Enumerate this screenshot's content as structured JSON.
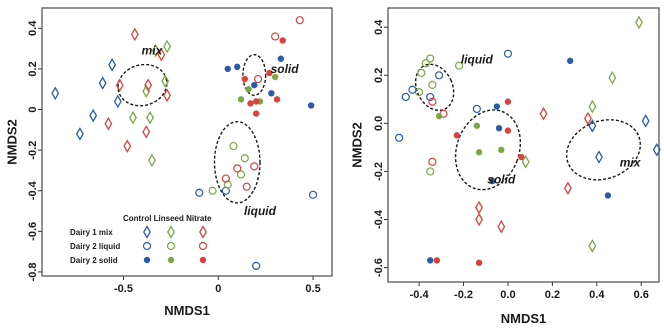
{
  "chart_data": [
    {
      "type": "scatter",
      "xlabel": "NMDS1",
      "ylabel": "NMDS2",
      "xlim": [
        -0.93,
        0.6
      ],
      "ylim": [
        -0.82,
        0.5
      ],
      "xticks": [
        -0.5,
        0.0,
        0.5
      ],
      "xtick_labels": [
        "-0.5",
        "0",
        "0.5"
      ],
      "yticks": [
        0.4,
        0.2,
        0.0,
        -0.2,
        -0.4,
        -0.6,
        -0.8
      ],
      "ytick_labels": [
        "0.4",
        "0.2",
        "0",
        "-0.2",
        "-0.4",
        "-0.6",
        "-0.8"
      ],
      "grid": false,
      "legend": {
        "placement": "bottom-left",
        "column_headers": [
          "Control",
          "Linseed",
          "Nitrate"
        ],
        "rows": [
          "Dairy 1 mix",
          "Dairy 2 liquid",
          "Dairy 2 solid"
        ],
        "marker_shapes": [
          "diamond",
          "circle-open",
          "circle-filled"
        ],
        "colors": [
          "#2b5ba8",
          "#7ba843",
          "#d9423f"
        ]
      },
      "ellipses": [
        {
          "label": "mix",
          "center": [
            -0.4,
            0.12
          ],
          "radii": [
            0.13,
            0.1
          ],
          "angle": -15
        },
        {
          "label": "solid",
          "center": [
            0.19,
            0.17
          ],
          "radii": [
            0.06,
            0.1
          ],
          "angle": 0
        },
        {
          "label": "liquid",
          "center": [
            0.1,
            -0.26
          ],
          "radii": [
            0.12,
            0.2
          ],
          "angle": 0
        }
      ],
      "annotations": [
        {
          "text": "mix",
          "x": -0.35,
          "y": 0.27
        },
        {
          "text": "solid",
          "x": 0.35,
          "y": 0.18
        },
        {
          "text": "liquid",
          "x": 0.22,
          "y": -0.52
        }
      ],
      "points": [
        {
          "x": -0.86,
          "y": 0.08,
          "group": "Dairy 1 mix",
          "treatment": "Control"
        },
        {
          "x": -0.66,
          "y": -0.03,
          "group": "Dairy 1 mix",
          "treatment": "Control"
        },
        {
          "x": -0.56,
          "y": 0.22,
          "group": "Dairy 1 mix",
          "treatment": "Control"
        },
        {
          "x": -0.61,
          "y": 0.13,
          "group": "Dairy 1 mix",
          "treatment": "Control"
        },
        {
          "x": -0.73,
          "y": -0.12,
          "group": "Dairy 1 mix",
          "treatment": "Control"
        },
        {
          "x": -0.53,
          "y": 0.04,
          "group": "Dairy 1 mix",
          "treatment": "Control"
        },
        {
          "x": -0.33,
          "y": 0.29,
          "group": "Dairy 1 mix",
          "treatment": "Linseed"
        },
        {
          "x": -0.27,
          "y": 0.31,
          "group": "Dairy 1 mix",
          "treatment": "Linseed"
        },
        {
          "x": -0.38,
          "y": 0.09,
          "group": "Dairy 1 mix",
          "treatment": "Linseed"
        },
        {
          "x": -0.45,
          "y": -0.04,
          "group": "Dairy 1 mix",
          "treatment": "Linseed"
        },
        {
          "x": -0.36,
          "y": -0.04,
          "group": "Dairy 1 mix",
          "treatment": "Linseed"
        },
        {
          "x": -0.35,
          "y": -0.25,
          "group": "Dairy 1 mix",
          "treatment": "Linseed"
        },
        {
          "x": -0.28,
          "y": 0.14,
          "group": "Dairy 1 mix",
          "treatment": "Linseed"
        },
        {
          "x": -0.44,
          "y": 0.37,
          "group": "Dairy 1 mix",
          "treatment": "Nitrate"
        },
        {
          "x": -0.52,
          "y": 0.12,
          "group": "Dairy 1 mix",
          "treatment": "Nitrate"
        },
        {
          "x": -0.58,
          "y": -0.07,
          "group": "Dairy 1 mix",
          "treatment": "Nitrate"
        },
        {
          "x": -0.38,
          "y": -0.11,
          "group": "Dairy 1 mix",
          "treatment": "Nitrate"
        },
        {
          "x": -0.37,
          "y": 0.12,
          "group": "Dairy 1 mix",
          "treatment": "Nitrate"
        },
        {
          "x": -0.3,
          "y": 0.27,
          "group": "Dairy 1 mix",
          "treatment": "Nitrate"
        },
        {
          "x": -0.27,
          "y": 0.07,
          "group": "Dairy 1 mix",
          "treatment": "Nitrate"
        },
        {
          "x": -0.48,
          "y": -0.18,
          "group": "Dairy 1 mix",
          "treatment": "Nitrate"
        },
        {
          "x": 0.43,
          "y": 0.44,
          "group": "Dairy 2 liquid",
          "treatment": "Nitrate"
        },
        {
          "x": 0.3,
          "y": 0.36,
          "group": "Dairy 2 liquid",
          "treatment": "Nitrate"
        },
        {
          "x": 0.21,
          "y": 0.15,
          "group": "Dairy 2 liquid",
          "treatment": "Nitrate"
        },
        {
          "x": -0.1,
          "y": -0.41,
          "group": "Dairy 2 liquid",
          "treatment": "Control"
        },
        {
          "x": 0.04,
          "y": -0.4,
          "group": "Dairy 2 liquid",
          "treatment": "Control"
        },
        {
          "x": 0.2,
          "y": -0.77,
          "group": "Dairy 2 liquid",
          "treatment": "Control"
        },
        {
          "x": 0.5,
          "y": -0.42,
          "group": "Dairy 2 liquid",
          "treatment": "Control"
        },
        {
          "x": 0.05,
          "y": -0.37,
          "group": "Dairy 2 liquid",
          "treatment": "Linseed"
        },
        {
          "x": 0.12,
          "y": -0.32,
          "group": "Dairy 2 liquid",
          "treatment": "Linseed"
        },
        {
          "x": 0.14,
          "y": -0.24,
          "group": "Dairy 2 liquid",
          "treatment": "Linseed"
        },
        {
          "x": -0.03,
          "y": -0.4,
          "group": "Dairy 2 liquid",
          "treatment": "Linseed"
        },
        {
          "x": 0.08,
          "y": -0.18,
          "group": "Dairy 2 liquid",
          "treatment": "Linseed"
        },
        {
          "x": 0.15,
          "y": -0.38,
          "group": "Dairy 2 liquid",
          "treatment": "Nitrate"
        },
        {
          "x": 0.1,
          "y": -0.29,
          "group": "Dairy 2 liquid",
          "treatment": "Nitrate"
        },
        {
          "x": 0.04,
          "y": -0.34,
          "group": "Dairy 2 liquid",
          "treatment": "Nitrate"
        },
        {
          "x": 0.19,
          "y": -0.28,
          "group": "Dairy 2 liquid",
          "treatment": "Nitrate"
        },
        {
          "x": 0.33,
          "y": 0.25,
          "group": "Dairy 2 solid",
          "treatment": "Control"
        },
        {
          "x": 0.19,
          "y": 0.12,
          "group": "Dairy 2 solid",
          "treatment": "Control"
        },
        {
          "x": 0.05,
          "y": 0.2,
          "group": "Dairy 2 solid",
          "treatment": "Control"
        },
        {
          "x": 0.1,
          "y": 0.21,
          "group": "Dairy 2 solid",
          "treatment": "Control"
        },
        {
          "x": 0.49,
          "y": 0.02,
          "group": "Dairy 2 solid",
          "treatment": "Control"
        },
        {
          "x": 0.28,
          "y": 0.08,
          "group": "Dairy 2 solid",
          "treatment": "Control"
        },
        {
          "x": 0.22,
          "y": 0.04,
          "group": "Dairy 2 solid",
          "treatment": "Linseed"
        },
        {
          "x": 0.12,
          "y": 0.05,
          "group": "Dairy 2 solid",
          "treatment": "Linseed"
        },
        {
          "x": 0.16,
          "y": 0.1,
          "group": "Dairy 2 solid",
          "treatment": "Linseed"
        },
        {
          "x": 0.3,
          "y": 0.16,
          "group": "Dairy 2 solid",
          "treatment": "Linseed"
        },
        {
          "x": 0.34,
          "y": 0.34,
          "group": "Dairy 2 solid",
          "treatment": "Nitrate"
        },
        {
          "x": 0.14,
          "y": 0.15,
          "group": "Dairy 2 solid",
          "treatment": "Nitrate"
        },
        {
          "x": 0.17,
          "y": 0.03,
          "group": "Dairy 2 solid",
          "treatment": "Nitrate"
        },
        {
          "x": 0.27,
          "y": 0.18,
          "group": "Dairy 2 solid",
          "treatment": "Nitrate"
        },
        {
          "x": 0.2,
          "y": -0.02,
          "group": "Dairy 2 solid",
          "treatment": "Nitrate"
        },
        {
          "x": 0.2,
          "y": 0.04,
          "group": "Dairy 2 solid",
          "treatment": "Nitrate"
        },
        {
          "x": 0.31,
          "y": 0.05,
          "group": "Dairy 2 solid",
          "treatment": "Nitrate"
        }
      ]
    },
    {
      "type": "scatter",
      "xlabel": "NMDS1",
      "ylabel": "NMDS2",
      "xlim": [
        -0.54,
        0.68
      ],
      "ylim": [
        -0.66,
        0.48
      ],
      "xticks": [
        -0.4,
        -0.2,
        0.0,
        0.2,
        0.4,
        0.6
      ],
      "xtick_labels": [
        "-0.4",
        "-0.2",
        "0.0",
        "0.2",
        "0.4",
        "0.6"
      ],
      "yticks": [
        0.4,
        0.2,
        0.0,
        -0.2,
        -0.4,
        -0.6
      ],
      "ytick_labels": [
        "0.4",
        "0.2",
        "0.0",
        "-0.2",
        "-0.4",
        "-0.6"
      ],
      "grid": false,
      "colors": [
        "#2b5ba8",
        "#7ba843",
        "#d9423f"
      ],
      "ellipses": [
        {
          "label": "liquid",
          "center": [
            -0.33,
            0.15
          ],
          "radii": [
            0.08,
            0.1
          ],
          "angle": -25
        },
        {
          "label": "solid",
          "center": [
            -0.09,
            -0.11
          ],
          "radii": [
            0.14,
            0.17
          ],
          "angle": 20
        },
        {
          "label": "mix",
          "center": [
            0.43,
            -0.11
          ],
          "radii": [
            0.17,
            0.12
          ],
          "angle": -20
        }
      ],
      "annotations": [
        {
          "text": "liquid",
          "x": -0.14,
          "y": 0.25
        },
        {
          "text": "solid",
          "x": -0.03,
          "y": -0.25
        },
        {
          "text": "mix",
          "x": 0.55,
          "y": -0.18
        }
      ],
      "points": [
        {
          "x": -0.37,
          "y": 0.25,
          "group": "Dairy 2 liquid",
          "treatment": "Linseed"
        },
        {
          "x": -0.35,
          "y": 0.27,
          "group": "Dairy 2 liquid",
          "treatment": "Linseed"
        },
        {
          "x": -0.39,
          "y": 0.21,
          "group": "Dairy 2 liquid",
          "treatment": "Linseed"
        },
        {
          "x": -0.34,
          "y": 0.16,
          "group": "Dairy 2 liquid",
          "treatment": "Linseed"
        },
        {
          "x": -0.4,
          "y": 0.13,
          "group": "Dairy 2 liquid",
          "treatment": "Linseed"
        },
        {
          "x": -0.22,
          "y": 0.24,
          "group": "Dairy 2 liquid",
          "treatment": "Linseed"
        },
        {
          "x": -0.35,
          "y": -0.2,
          "group": "Dairy 2 liquid",
          "treatment": "Linseed"
        },
        {
          "x": -0.31,
          "y": 0.2,
          "group": "Dairy 2 liquid",
          "treatment": "Control"
        },
        {
          "x": -0.43,
          "y": 0.14,
          "group": "Dairy 2 liquid",
          "treatment": "Control"
        },
        {
          "x": -0.46,
          "y": 0.11,
          "group": "Dairy 2 liquid",
          "treatment": "Control"
        },
        {
          "x": -0.49,
          "y": -0.06,
          "group": "Dairy 2 liquid",
          "treatment": "Control"
        },
        {
          "x": -0.35,
          "y": 0.11,
          "group": "Dairy 2 liquid",
          "treatment": "Control"
        },
        {
          "x": 0.0,
          "y": 0.29,
          "group": "Dairy 2 liquid",
          "treatment": "Control"
        },
        {
          "x": -0.34,
          "y": 0.09,
          "group": "Dairy 2 liquid",
          "treatment": "Nitrate"
        },
        {
          "x": -0.34,
          "y": -0.16,
          "group": "Dairy 2 liquid",
          "treatment": "Nitrate"
        },
        {
          "x": -0.29,
          "y": 0.04,
          "group": "Dairy 2 liquid",
          "treatment": "Nitrate"
        },
        {
          "x": -0.14,
          "y": 0.06,
          "group": "Dairy 2 liquid",
          "treatment": "Control"
        },
        {
          "x": -0.07,
          "y": -0.24,
          "group": "Dairy 2 solid",
          "treatment": "Control"
        },
        {
          "x": -0.04,
          "y": -0.02,
          "group": "Dairy 2 solid",
          "treatment": "Control"
        },
        {
          "x": 0.28,
          "y": 0.26,
          "group": "Dairy 2 solid",
          "treatment": "Control"
        },
        {
          "x": 0.45,
          "y": -0.3,
          "group": "Dairy 2 solid",
          "treatment": "Control"
        },
        {
          "x": -0.35,
          "y": -0.57,
          "group": "Dairy 2 solid",
          "treatment": "Control"
        },
        {
          "x": -0.05,
          "y": 0.07,
          "group": "Dairy 2 solid",
          "treatment": "Control"
        },
        {
          "x": -0.31,
          "y": 0.03,
          "group": "Dairy 2 solid",
          "treatment": "Linseed"
        },
        {
          "x": -0.14,
          "y": -0.01,
          "group": "Dairy 2 solid",
          "treatment": "Linseed"
        },
        {
          "x": -0.03,
          "y": -0.11,
          "group": "Dairy 2 solid",
          "treatment": "Linseed"
        },
        {
          "x": -0.13,
          "y": -0.12,
          "group": "Dairy 2 solid",
          "treatment": "Linseed"
        },
        {
          "x": -0.23,
          "y": -0.05,
          "group": "Dairy 2 solid",
          "treatment": "Nitrate"
        },
        {
          "x": -0.32,
          "y": -0.57,
          "group": "Dairy 2 solid",
          "treatment": "Nitrate"
        },
        {
          "x": -0.13,
          "y": -0.58,
          "group": "Dairy 2 solid",
          "treatment": "Nitrate"
        },
        {
          "x": 0.0,
          "y": -0.03,
          "group": "Dairy 2 solid",
          "treatment": "Nitrate"
        },
        {
          "x": 0.06,
          "y": -0.14,
          "group": "Dairy 2 solid",
          "treatment": "Nitrate"
        },
        {
          "x": 0.0,
          "y": 0.09,
          "group": "Dairy 2 solid",
          "treatment": "Nitrate"
        },
        {
          "x": 0.38,
          "y": 0.07,
          "group": "Dairy 1 mix",
          "treatment": "Linseed"
        },
        {
          "x": 0.47,
          "y": 0.19,
          "group": "Dairy 1 mix",
          "treatment": "Linseed"
        },
        {
          "x": 0.59,
          "y": 0.42,
          "group": "Dairy 1 mix",
          "treatment": "Linseed"
        },
        {
          "x": 0.08,
          "y": -0.16,
          "group": "Dairy 1 mix",
          "treatment": "Linseed"
        },
        {
          "x": 0.38,
          "y": -0.51,
          "group": "Dairy 1 mix",
          "treatment": "Linseed"
        },
        {
          "x": 0.38,
          "y": -0.01,
          "group": "Dairy 1 mix",
          "treatment": "Control"
        },
        {
          "x": 0.41,
          "y": -0.14,
          "group": "Dairy 1 mix",
          "treatment": "Control"
        },
        {
          "x": 0.62,
          "y": 0.01,
          "group": "Dairy 1 mix",
          "treatment": "Control"
        },
        {
          "x": 0.67,
          "y": -0.11,
          "group": "Dairy 1 mix",
          "treatment": "Control"
        },
        {
          "x": 0.16,
          "y": 0.04,
          "group": "Dairy 1 mix",
          "treatment": "Nitrate"
        },
        {
          "x": 0.27,
          "y": -0.27,
          "group": "Dairy 1 mix",
          "treatment": "Nitrate"
        },
        {
          "x": 0.36,
          "y": 0.02,
          "group": "Dairy 1 mix",
          "treatment": "Nitrate"
        },
        {
          "x": -0.13,
          "y": -0.35,
          "group": "Dairy 1 mix",
          "treatment": "Nitrate"
        },
        {
          "x": -0.13,
          "y": -0.4,
          "group": "Dairy 1 mix",
          "treatment": "Nitrate"
        },
        {
          "x": -0.03,
          "y": -0.43,
          "group": "Dairy 1 mix",
          "treatment": "Nitrate"
        }
      ]
    }
  ]
}
